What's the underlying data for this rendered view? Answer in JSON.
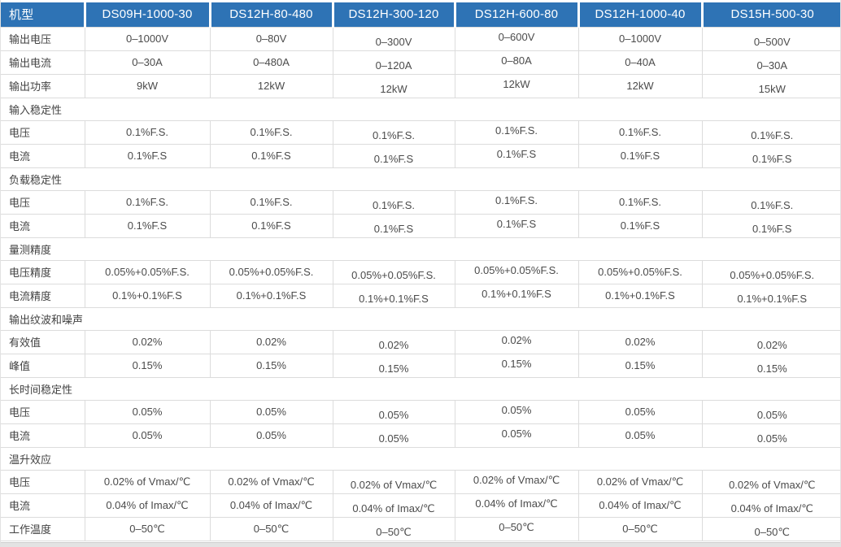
{
  "colors": {
    "header_bg": "#2e73b5",
    "header_text": "#ffffff",
    "grid_line": "#dcdcdc",
    "body_text": "#4b4b4b"
  },
  "table": {
    "header": {
      "label": "机型",
      "models": [
        "DS09H-1000-30",
        "DS12H-80-480",
        "DS12H-300-120",
        "DS12H-600-80",
        "DS12H-1000-40",
        "DS15H-500-30"
      ]
    },
    "rows": [
      {
        "type": "data",
        "label": "输出电压",
        "values": [
          "0–1000V",
          "0–80V",
          "0–300V",
          "0–600V",
          "0–1000V",
          "0–500V"
        ]
      },
      {
        "type": "data",
        "label": "输出电流",
        "values": [
          "0–30A",
          "0–480A",
          "0–120A",
          "0–80A",
          "0–40A",
          "0–30A"
        ]
      },
      {
        "type": "data",
        "label": "输出功率",
        "values": [
          "9kW",
          "12kW",
          "12kW",
          "12kW",
          "12kW",
          "15kW"
        ]
      },
      {
        "type": "section",
        "label": "输入稳定性"
      },
      {
        "type": "data",
        "label": "电压",
        "values": [
          "0.1%F.S.",
          "0.1%F.S.",
          "0.1%F.S.",
          "0.1%F.S.",
          "0.1%F.S.",
          "0.1%F.S."
        ]
      },
      {
        "type": "data",
        "label": "电流",
        "values": [
          "0.1%F.S",
          "0.1%F.S",
          "0.1%F.S",
          "0.1%F.S",
          "0.1%F.S",
          "0.1%F.S"
        ]
      },
      {
        "type": "section",
        "label": "负载稳定性"
      },
      {
        "type": "data",
        "label": "电压",
        "values": [
          "0.1%F.S.",
          "0.1%F.S.",
          "0.1%F.S.",
          "0.1%F.S.",
          "0.1%F.S.",
          "0.1%F.S."
        ]
      },
      {
        "type": "data",
        "label": "电流",
        "values": [
          "0.1%F.S",
          "0.1%F.S",
          "0.1%F.S",
          "0.1%F.S",
          "0.1%F.S",
          "0.1%F.S"
        ]
      },
      {
        "type": "section",
        "label": "量测精度"
      },
      {
        "type": "data",
        "label": "电压精度",
        "values": [
          "0.05%+0.05%F.S.",
          "0.05%+0.05%F.S.",
          "0.05%+0.05%F.S.",
          "0.05%+0.05%F.S.",
          "0.05%+0.05%F.S.",
          "0.05%+0.05%F.S."
        ]
      },
      {
        "type": "data",
        "label": "电流精度",
        "values": [
          "0.1%+0.1%F.S",
          "0.1%+0.1%F.S",
          "0.1%+0.1%F.S",
          "0.1%+0.1%F.S",
          "0.1%+0.1%F.S",
          "0.1%+0.1%F.S"
        ]
      },
      {
        "type": "section",
        "label": "输出纹波和噪声"
      },
      {
        "type": "data",
        "label": "有效值",
        "values": [
          "0.02%",
          "0.02%",
          "0.02%",
          "0.02%",
          "0.02%",
          "0.02%"
        ]
      },
      {
        "type": "data",
        "label": "峰值",
        "values": [
          "0.15%",
          "0.15%",
          "0.15%",
          "0.15%",
          "0.15%",
          "0.15%"
        ]
      },
      {
        "type": "section",
        "label": "长时间稳定性"
      },
      {
        "type": "data",
        "label": "电压",
        "values": [
          "0.05%",
          "0.05%",
          "0.05%",
          "0.05%",
          "0.05%",
          "0.05%"
        ]
      },
      {
        "type": "data",
        "label": "电流",
        "values": [
          "0.05%",
          "0.05%",
          "0.05%",
          "0.05%",
          "0.05%",
          "0.05%"
        ]
      },
      {
        "type": "section",
        "label": "温升效应"
      },
      {
        "type": "data",
        "label": "电压",
        "values": [
          "0.02% of Vmax/℃",
          "0.02% of Vmax/℃",
          "0.02% of Vmax/℃",
          "0.02% of Vmax/℃",
          "0.02% of Vmax/℃",
          "0.02% of Vmax/℃"
        ]
      },
      {
        "type": "data",
        "label": "电流",
        "values": [
          "0.04% of Imax/℃",
          "0.04% of Imax/℃",
          "0.04% of Imax/℃",
          "0.04% of Imax/℃",
          "0.04% of Imax/℃",
          "0.04% of Imax/℃"
        ]
      },
      {
        "type": "data",
        "label": "工作温度",
        "values": [
          "0–50℃",
          "0–50℃",
          "0–50℃",
          "0–50℃",
          "0–50℃",
          "0–50℃"
        ]
      }
    ]
  }
}
